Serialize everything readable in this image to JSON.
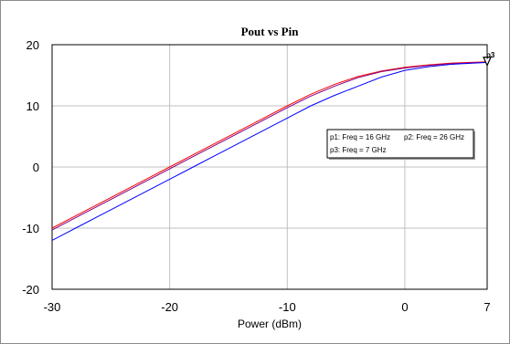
{
  "chart_data": {
    "type": "line",
    "title": "Pout vs Pin",
    "xlabel": "Power (dBm)",
    "ylabel": "",
    "xlim": [
      -30,
      7
    ],
    "ylim": [
      -20,
      20
    ],
    "xticks": [
      -30,
      -20,
      -10,
      0,
      7
    ],
    "yticks": [
      -20,
      -10,
      0,
      10,
      20
    ],
    "grid": true,
    "legend": {
      "placement": "right-middle",
      "entries": [
        "p1: Freq = 16 GHz",
        "p2: Freq = 26 GHz",
        "p3: Freq = 7 GHz"
      ]
    },
    "marker_label": "p3",
    "series": [
      {
        "color": "#ff0000",
        "x": [
          -30,
          -28,
          -26,
          -24,
          -22,
          -20,
          -18,
          -16,
          -14,
          -12,
          -10,
          -8,
          -6,
          -4,
          -2,
          0,
          2,
          4,
          7
        ],
        "y": [
          -10,
          -8,
          -6,
          -4,
          -2,
          0,
          2,
          4,
          6,
          8,
          10,
          11.9,
          13.5,
          14.8,
          15.7,
          16.3,
          16.7,
          17,
          17.2
        ]
      },
      {
        "color": "#800080",
        "x": [
          -30,
          -28,
          -26,
          -24,
          -22,
          -20,
          -18,
          -16,
          -14,
          -12,
          -10,
          -8,
          -6,
          -4,
          -2,
          0,
          2,
          4,
          7
        ],
        "y": [
          -10.3,
          -8.3,
          -6.3,
          -4.3,
          -2.3,
          -0.3,
          1.7,
          3.7,
          5.7,
          7.7,
          9.7,
          11.6,
          13.2,
          14.6,
          15.6,
          16.2,
          16.6,
          16.9,
          17.1
        ]
      },
      {
        "color": "#0000ff",
        "x": [
          -30,
          -28,
          -26,
          -24,
          -22,
          -20,
          -18,
          -16,
          -14,
          -12,
          -10,
          -8,
          -6,
          -4,
          -2,
          0,
          2,
          4,
          7
        ],
        "y": [
          -12,
          -10,
          -8,
          -6,
          -4,
          -2,
          0,
          2,
          4,
          6,
          8,
          10,
          11.7,
          13.2,
          14.7,
          15.8,
          16.4,
          16.8,
          17.1
        ]
      }
    ]
  }
}
